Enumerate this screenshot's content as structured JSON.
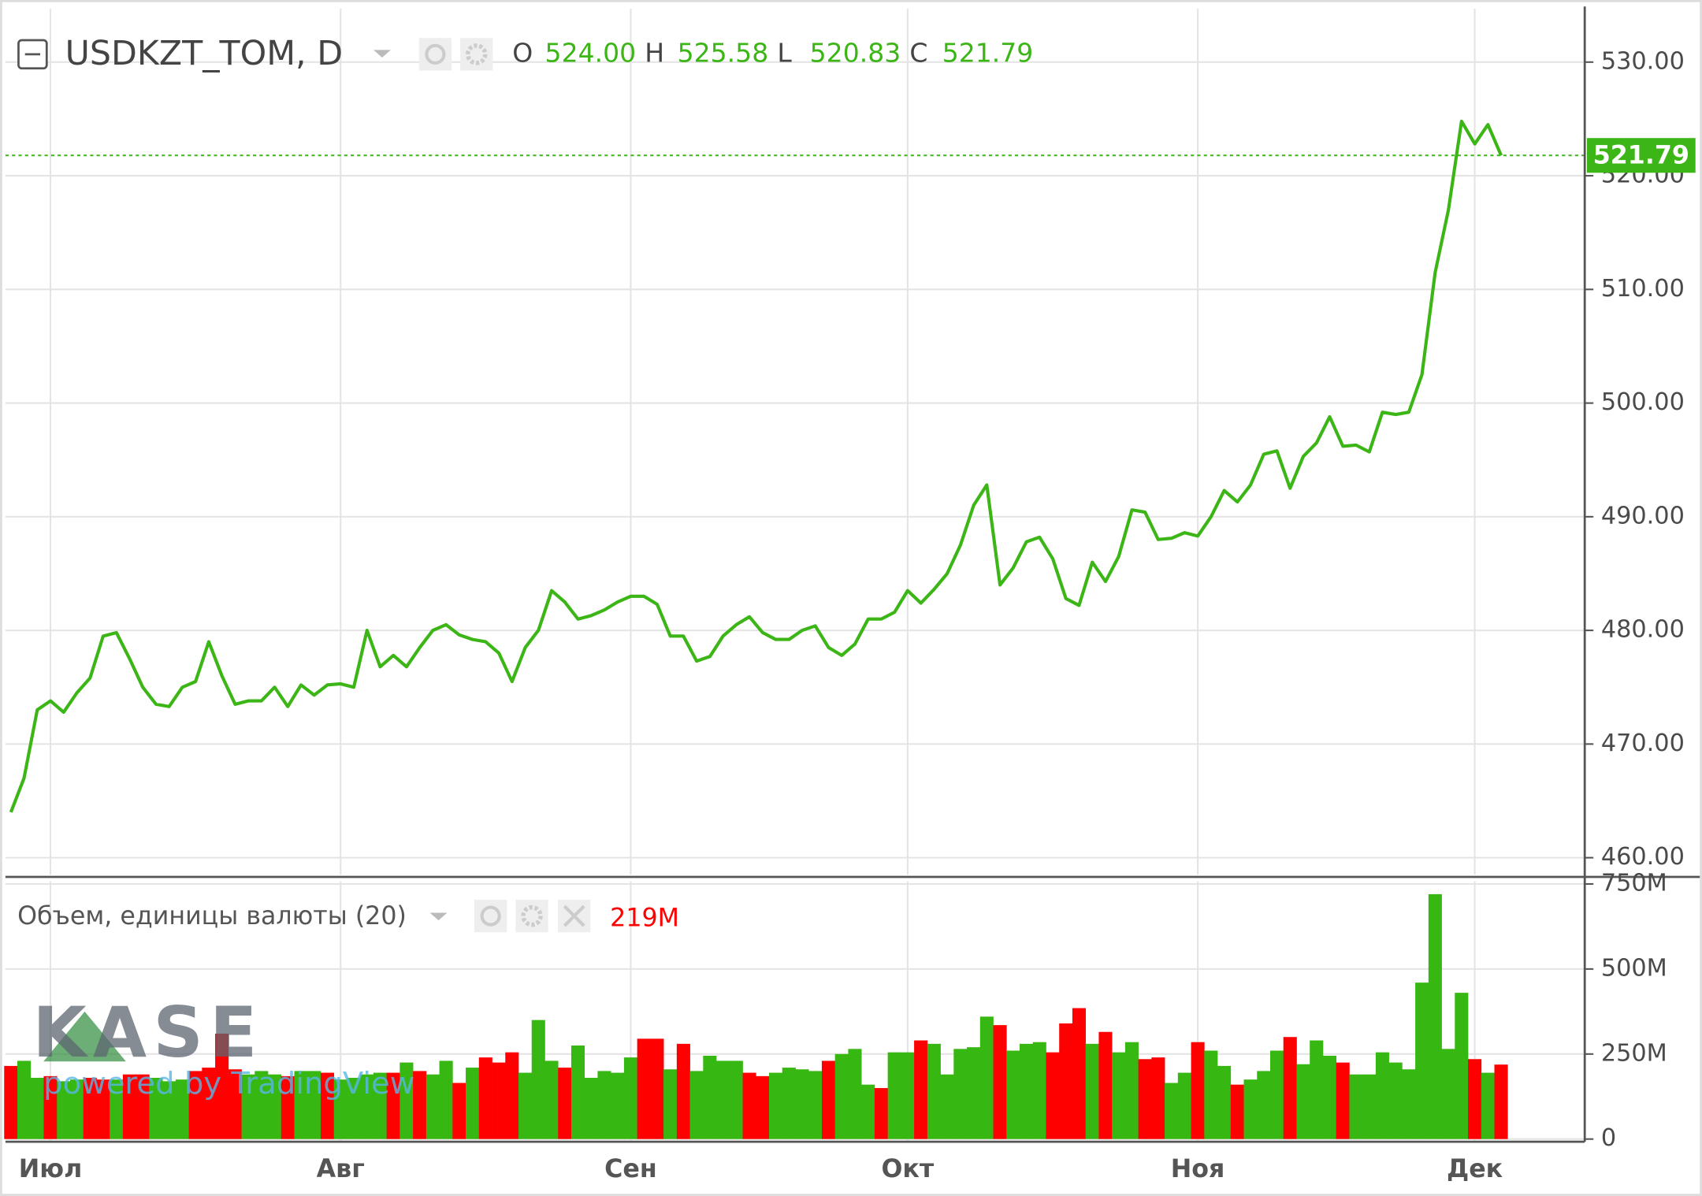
{
  "header": {
    "symbol": "USDKZT_TOM, D",
    "ohlc": [
      {
        "key": "O",
        "value": "524.00"
      },
      {
        "key": "H",
        "value": "525.58"
      },
      {
        "key": "L",
        "value": "520.83"
      },
      {
        "key": "C",
        "value": "521.79"
      }
    ]
  },
  "watermark": {
    "logo": "KASE",
    "credit": "powered by TradingView"
  },
  "chart_data": [
    {
      "type": "line",
      "color": "#3cb516",
      "grid": true,
      "last_value": 521.79,
      "last_color": "#3cb516",
      "ylim": [
        458.5,
        534.7
      ],
      "yticks": [
        {
          "value": 460,
          "label": "460.00"
        },
        {
          "value": 470,
          "label": "470.00"
        },
        {
          "value": 480,
          "label": "480.00"
        },
        {
          "value": 490,
          "label": "490.00"
        },
        {
          "value": 500,
          "label": "500.00"
        },
        {
          "value": 510,
          "label": "510.00"
        },
        {
          "value": 520,
          "label": "520.00"
        },
        {
          "value": 530,
          "label": "530.00"
        }
      ],
      "values": [
        464,
        467,
        473,
        473.8,
        472.8,
        474.5,
        475.8,
        479.5,
        479.8,
        477.5,
        475,
        473.5,
        473.3,
        475,
        475.5,
        479,
        476,
        473.5,
        473.8,
        473.8,
        475,
        473.3,
        475.2,
        474.3,
        475.2,
        475.3,
        475,
        480,
        476.8,
        477.8,
        476.8,
        478.5,
        480,
        480.5,
        479.6,
        479.2,
        479,
        478,
        475.5,
        478.5,
        480,
        483.5,
        482.5,
        481,
        481.3,
        481.8,
        482.5,
        483,
        483,
        482.3,
        479.5,
        479.5,
        477.3,
        477.7,
        479.5,
        480.5,
        481.2,
        479.8,
        479.2,
        479.2,
        480,
        480.4,
        478.5,
        477.8,
        478.8,
        481,
        481,
        481.6,
        483.5,
        482.4,
        483.6,
        485,
        487.5,
        491,
        492.8,
        484,
        485.5,
        487.8,
        488.2,
        486.3,
        482.8,
        482.2,
        486,
        484.3,
        486.5,
        490.6,
        490.4,
        488,
        488.1,
        488.6,
        488.3,
        490,
        492.3,
        491.3,
        492.8,
        495.5,
        495.8,
        492.5,
        495.3,
        496.5,
        498.8,
        496.2,
        496.3,
        495.7,
        499.2,
        499,
        499.2,
        502.5,
        511.5,
        517,
        524.8,
        522.8,
        524.5,
        521.79
      ]
    },
    {
      "type": "bar",
      "title": "Объем, единицы валюты (20)",
      "last_label": "219M",
      "last_label_color": "#ff0000",
      "grid": true,
      "ylim": [
        -4.7,
        758
      ],
      "yticks": [
        0,
        {
          "value": 250,
          "label": "250M"
        },
        {
          "value": 500,
          "label": "500M"
        },
        {
          "value": 750,
          "label": "750M"
        }
      ],
      "categories": [
        null,
        null,
        null,
        "Июл",
        null,
        null,
        null,
        null,
        null,
        null,
        null,
        null,
        null,
        null,
        null,
        null,
        null,
        null,
        null,
        null,
        null,
        null,
        null,
        null,
        null,
        "Авг",
        null,
        null,
        null,
        null,
        null,
        null,
        null,
        null,
        null,
        null,
        null,
        null,
        null,
        null,
        null,
        null,
        null,
        null,
        null,
        null,
        null,
        "Сен",
        null,
        null,
        null,
        null,
        null,
        null,
        null,
        null,
        null,
        null,
        null,
        null,
        null,
        null,
        null,
        null,
        null,
        null,
        null,
        null,
        "Окт",
        null,
        null,
        null,
        null,
        null,
        null,
        null,
        null,
        null,
        null,
        null,
        null,
        null,
        null,
        null,
        null,
        null,
        null,
        null,
        null,
        null,
        "Ноя",
        null,
        null,
        null,
        null,
        null,
        null,
        null,
        null,
        null,
        null,
        null,
        null,
        null,
        null,
        null,
        null,
        null,
        null,
        null,
        null,
        "Дек",
        null,
        null
      ],
      "values": [
        215,
        230,
        180,
        185,
        170,
        175,
        180,
        175,
        175,
        190,
        190,
        180,
        170,
        175,
        200,
        210,
        310,
        205,
        190,
        200,
        190,
        185,
        200,
        200,
        195,
        175,
        180,
        190,
        195,
        195,
        225,
        200,
        190,
        230,
        165,
        210,
        240,
        225,
        255,
        195,
        350,
        230,
        210,
        275,
        180,
        200,
        195,
        240,
        295,
        295,
        205,
        280,
        200,
        245,
        230,
        230,
        195,
        185,
        195,
        210,
        205,
        200,
        230,
        250,
        265,
        160,
        150,
        255,
        255,
        290,
        280,
        190,
        265,
        270,
        360,
        335,
        260,
        280,
        285,
        255,
        340,
        385,
        280,
        315,
        255,
        285,
        235,
        240,
        165,
        195,
        285,
        260,
        215,
        160,
        175,
        200,
        260,
        300,
        220,
        290,
        245,
        225,
        190,
        190,
        255,
        225,
        205,
        460,
        720,
        265,
        430,
        235,
        195,
        219
      ],
      "colors": [
        "#ff0000",
        "#37b711",
        "#37b711",
        "#ff0000",
        "#37b711",
        "#37b711",
        "#ff0000",
        "#ff0000",
        "#37b711",
        "#ff0000",
        "#ff0000",
        "#37b711",
        "#37b711",
        "#37b711",
        "#ff0000",
        "#ff0000",
        "#ff0000",
        "#ff0000",
        "#37b711",
        "#37b711",
        "#37b711",
        "#ff0000",
        "#37b711",
        "#37b711",
        "#ff0000",
        "#37b711",
        "#37b711",
        "#37b711",
        "#37b711",
        "#ff0000",
        "#37b711",
        "#ff0000",
        "#37b711",
        "#37b711",
        "#ff0000",
        "#37b711",
        "#ff0000",
        "#ff0000",
        "#ff0000",
        "#37b711",
        "#37b711",
        "#37b711",
        "#ff0000",
        "#37b711",
        "#37b711",
        "#37b711",
        "#37b711",
        "#37b711",
        "#ff0000",
        "#ff0000",
        "#37b711",
        "#ff0000",
        "#37b711",
        "#37b711",
        "#37b711",
        "#37b711",
        "#ff0000",
        "#ff0000",
        "#37b711",
        "#37b711",
        "#37b711",
        "#37b711",
        "#ff0000",
        "#37b711",
        "#37b711",
        "#37b711",
        "#ff0000",
        "#37b711",
        "#37b711",
        "#ff0000",
        "#37b711",
        "#37b711",
        "#37b711",
        "#37b711",
        "#37b711",
        "#ff0000",
        "#37b711",
        "#37b711",
        "#37b711",
        "#ff0000",
        "#ff0000",
        "#ff0000",
        "#37b711",
        "#ff0000",
        "#37b711",
        "#37b711",
        "#ff0000",
        "#ff0000",
        "#37b711",
        "#37b711",
        "#ff0000",
        "#37b711",
        "#37b711",
        "#ff0000",
        "#37b711",
        "#37b711",
        "#37b711",
        "#ff0000",
        "#37b711",
        "#37b711",
        "#37b711",
        "#ff0000",
        "#37b711",
        "#37b711",
        "#37b711",
        "#37b711",
        "#37b711",
        "#37b711",
        "#37b711",
        "#37b711",
        "#37b711",
        "#ff0000",
        "#37b711",
        "#ff0000"
      ]
    }
  ]
}
